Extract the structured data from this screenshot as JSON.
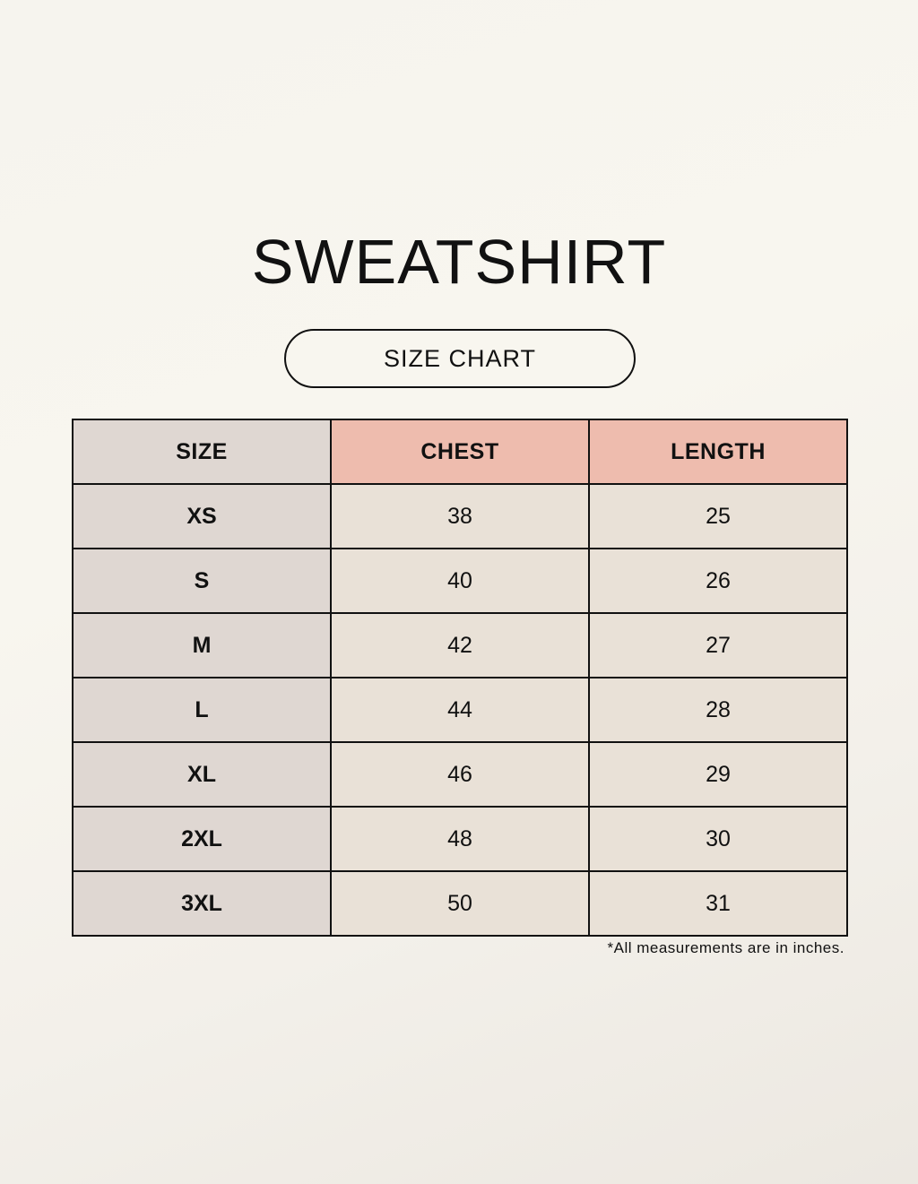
{
  "title": "SWEATSHIRT",
  "subtitle": "SIZE CHART",
  "colors": {
    "size_column": "#dfd7d2",
    "header_accent": "#eebcae",
    "cell": "#e9e1d7"
  },
  "table": {
    "headers": [
      "SIZE",
      "CHEST",
      "LENGTH"
    ],
    "rows": [
      [
        "XS",
        "38",
        "25"
      ],
      [
        "S",
        "40",
        "26"
      ],
      [
        "M",
        "42",
        "27"
      ],
      [
        "L",
        "44",
        "28"
      ],
      [
        "XL",
        "46",
        "29"
      ],
      [
        "2XL",
        "48",
        "30"
      ],
      [
        "3XL",
        "50",
        "31"
      ]
    ]
  },
  "footnote": "*All measurements are in inches."
}
